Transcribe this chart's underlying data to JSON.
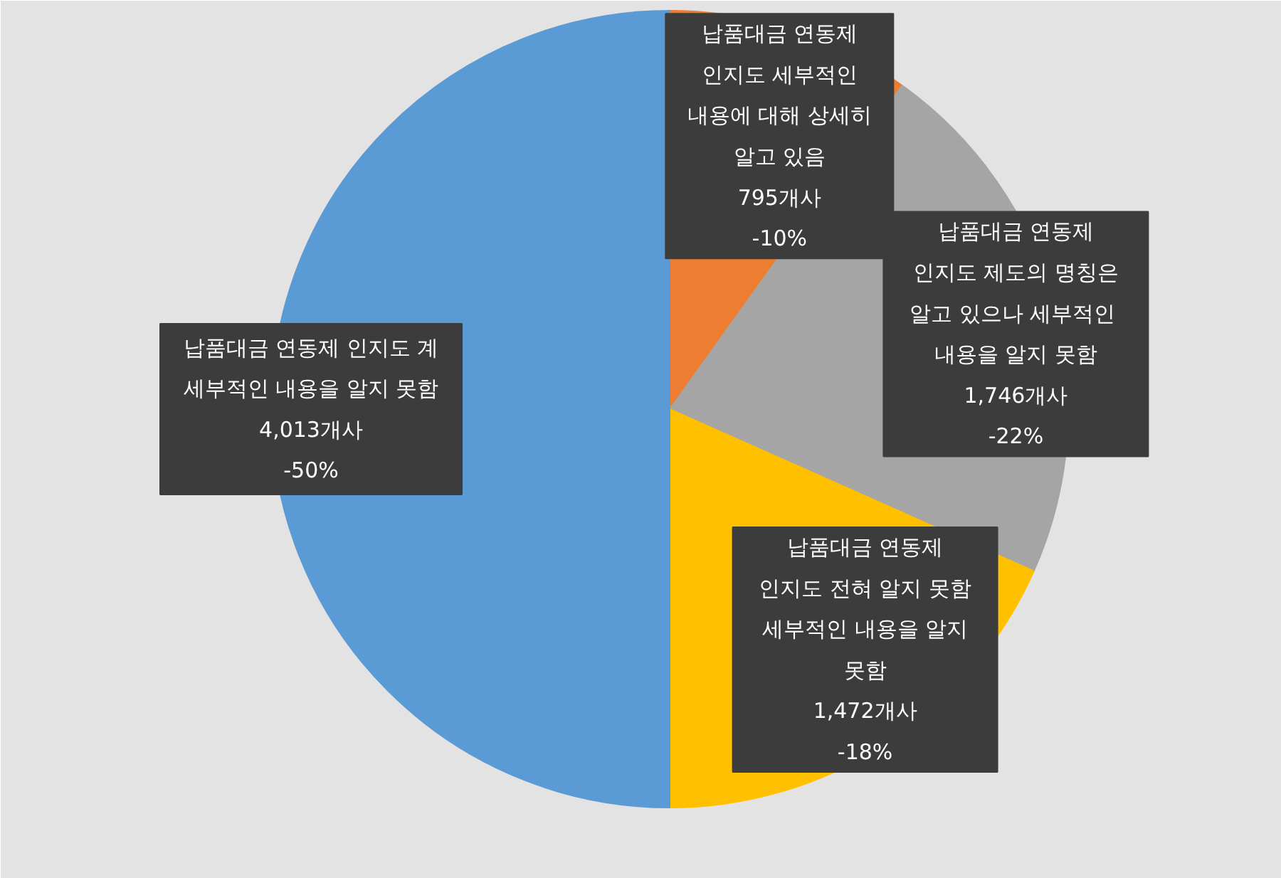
{
  "chart_data": {
    "type": "pie",
    "categories": [
      "납품대금 연동제\n인지도 세부적인\n내용에 대해 상세히\n알고 있음",
      "납품대금 연동제\n인지도 제도의 명칭은\n알고 있으나  세부적인\n내용을 알지 못함",
      "납품대금 연동제\n인지도 전혀 알지 못함\n세부적인 내용을 알지\n못함",
      "납품대금 연동제 인지도 계\n세부적인 내용을 알지 못함"
    ],
    "values": [
      795,
      1746,
      1472,
      4013
    ],
    "value_labels": [
      "795개사\n-10%",
      "1,746개사\n-22%",
      "1,472개사\n-18%",
      "4,013개사\n-50%"
    ],
    "colors": [
      "#ed7d31",
      "#a5a5a5",
      "#ffc000",
      "#5b9bd5"
    ]
  }
}
